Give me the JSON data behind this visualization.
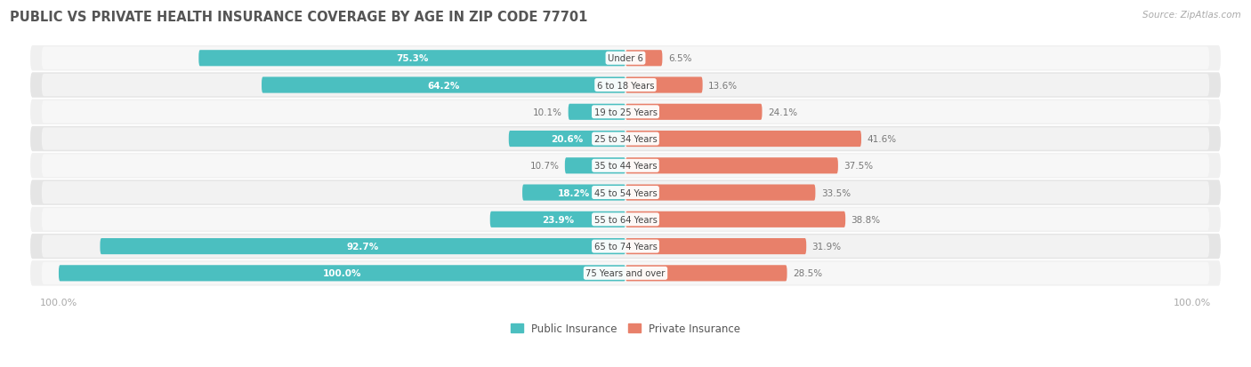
{
  "title": "PUBLIC VS PRIVATE HEALTH INSURANCE COVERAGE BY AGE IN ZIP CODE 77701",
  "source": "Source: ZipAtlas.com",
  "categories": [
    "Under 6",
    "6 to 18 Years",
    "19 to 25 Years",
    "25 to 34 Years",
    "35 to 44 Years",
    "45 to 54 Years",
    "55 to 64 Years",
    "65 to 74 Years",
    "75 Years and over"
  ],
  "public_values": [
    75.3,
    64.2,
    10.1,
    20.6,
    10.7,
    18.2,
    23.9,
    92.7,
    100.0
  ],
  "private_values": [
    6.5,
    13.6,
    24.1,
    41.6,
    37.5,
    33.5,
    38.8,
    31.9,
    28.5
  ],
  "public_color": "#4BBFC0",
  "private_color": "#E8806A",
  "row_bg_color_odd": "#F0F0F0",
  "row_bg_color_even": "#E5E5E5",
  "title_color": "#555555",
  "value_text_color_inside": "#FFFFFF",
  "value_text_color_outside": "#888888",
  "center_label_color": "#444444",
  "axis_label_color": "#AAAAAA",
  "max_value": 100.0,
  "figsize": [
    14.06,
    4.14
  ],
  "dpi": 100,
  "bar_threshold_inside": 15.0
}
